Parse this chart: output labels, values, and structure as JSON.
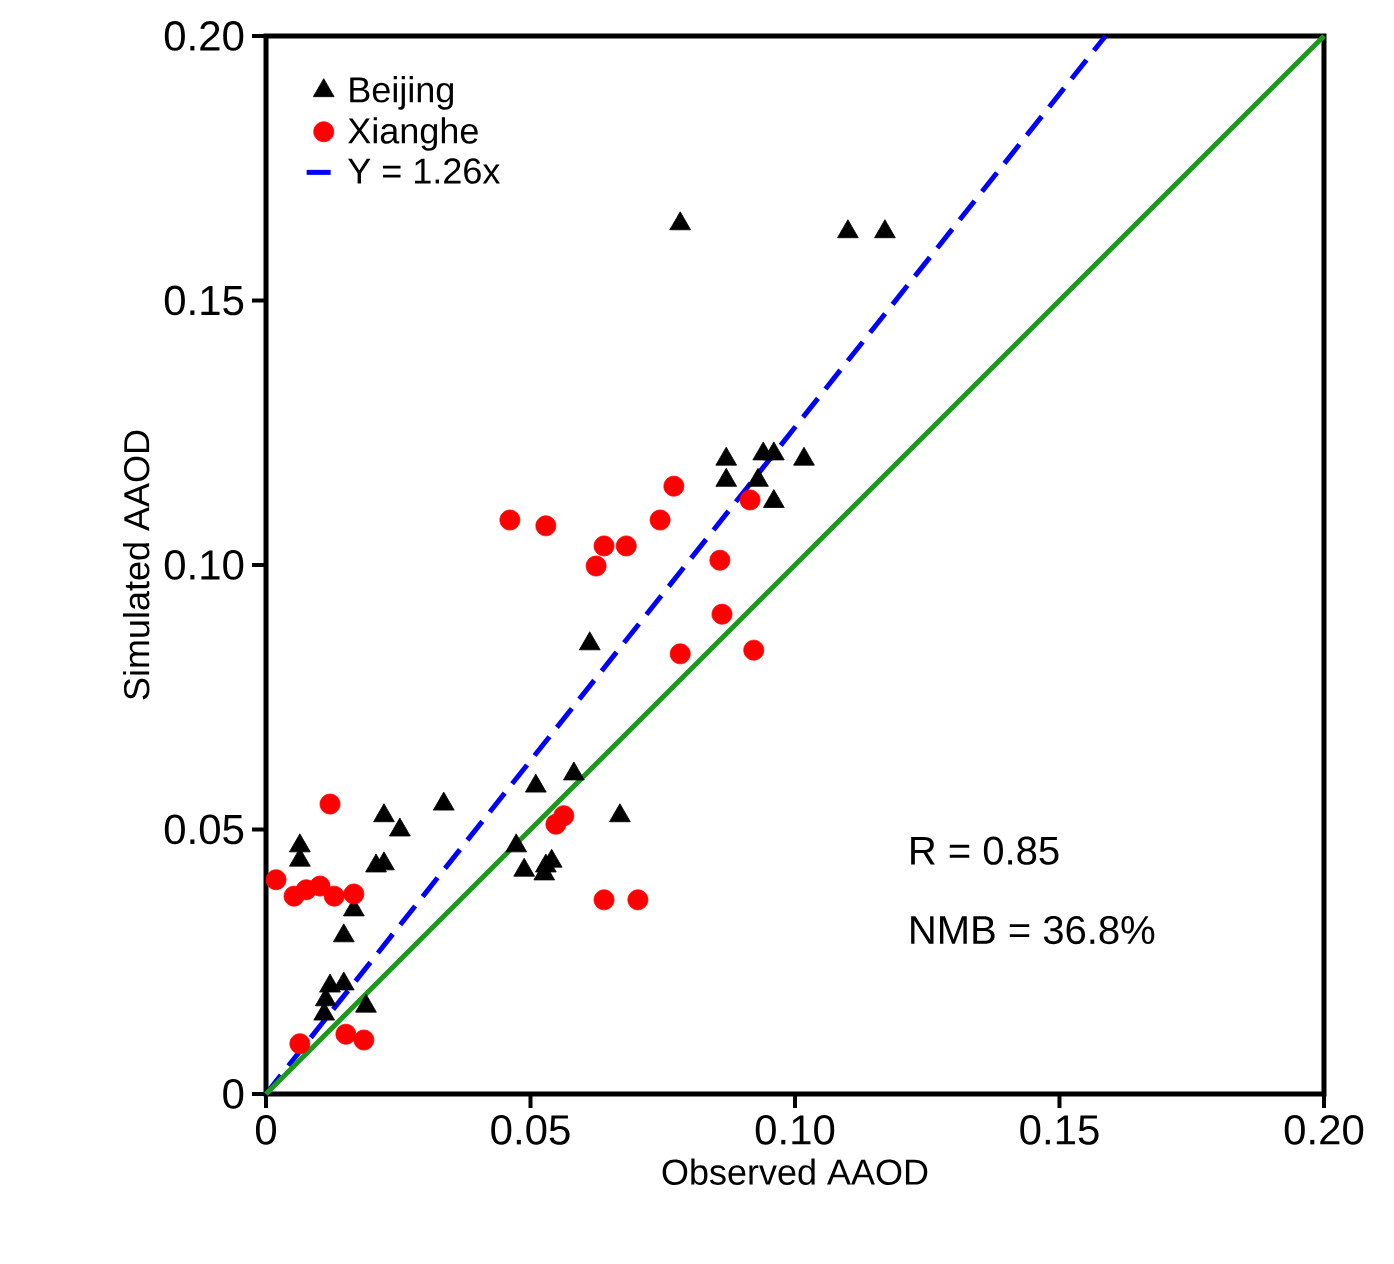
{
  "chart_data": {
    "type": "scatter",
    "xlabel": "Observed AAOD",
    "ylabel": "Simulated AAOD",
    "xlim": [
      0,
      0.2
    ],
    "ylim": [
      0,
      0.2
    ],
    "xticks": [
      0,
      {
        "value": 0.05,
        "label": "0.05"
      },
      {
        "value": 0.1,
        "label": "0.10"
      },
      {
        "value": 0.15,
        "label": "0.15"
      },
      {
        "value": 0.2,
        "label": "0.20"
      }
    ],
    "yticks": [
      0,
      {
        "value": 0.05,
        "label": "0.05"
      },
      {
        "value": 0.1,
        "label": "0.10"
      },
      {
        "value": 0.15,
        "label": "0.15"
      },
      {
        "value": 0.2,
        "label": "0.20"
      }
    ],
    "legend": "top left",
    "grid": false,
    "annotations": [
      "R = 0.85",
      "NMB = 36.8%"
    ],
    "series": [
      {
        "name": "Beijing",
        "marker": "triangle",
        "color": "#000000",
        "x": [
          0.0064,
          0.0064,
          0.0147,
          0.0166,
          0.0208,
          0.0223,
          0.0223,
          0.0253,
          0.0336,
          0.011,
          0.0113,
          0.0121,
          0.0147,
          0.0189,
          0.0473,
          0.0488,
          0.051,
          0.0526,
          0.0529,
          0.054,
          0.0582,
          0.0612,
          0.0669,
          0.0783,
          0.087,
          0.087,
          0.094,
          0.093,
          0.096,
          0.096,
          0.1017,
          0.11,
          0.117
        ],
        "values": [
          0.0469,
          0.0442,
          0.0299,
          0.0348,
          0.0431,
          0.0435,
          0.0526,
          0.0499,
          0.0548,
          0.0151,
          0.0178,
          0.0204,
          0.0208,
          0.0166,
          0.0469,
          0.0423,
          0.0582,
          0.0416,
          0.0431,
          0.044,
          0.0605,
          0.0851,
          0.0526,
          0.1645,
          0.12,
          0.116,
          0.121,
          0.116,
          0.121,
          0.112,
          0.12,
          0.163,
          0.163
        ]
      },
      {
        "name": "Xianghe",
        "marker": "circle",
        "color": "#ff0000",
        "x": [
          0.0019,
          0.0053,
          0.0076,
          0.0102,
          0.0129,
          0.0166,
          0.0121,
          0.0064,
          0.0151,
          0.0185,
          0.0461,
          0.0529,
          0.0624,
          0.0639,
          0.0681,
          0.0745,
          0.0771,
          0.0858,
          0.0862,
          0.0783,
          0.0922,
          0.0915,
          0.0548,
          0.0563,
          0.0639,
          0.0703
        ],
        "values": [
          0.0405,
          0.0374,
          0.0386,
          0.0393,
          0.0374,
          0.0378,
          0.0548,
          0.0095,
          0.0113,
          0.0102,
          0.1085,
          0.1074,
          0.0998,
          0.1036,
          0.1036,
          0.1085,
          0.1149,
          0.1009,
          0.0907,
          0.0832,
          0.0839,
          0.1123,
          0.051,
          0.0526,
          0.0367,
          0.0367
        ]
      },
      {
        "name": "Y = 1.26x",
        "type": "line",
        "line_style": "dashed",
        "marker": "none",
        "color": "#0000ff",
        "x": [
          0,
          0.1587
        ],
        "values": [
          0,
          0.2
        ]
      },
      {
        "type": "line",
        "line_style": "solid",
        "marker": "none",
        "color": "#1a9a1a",
        "x": [
          0,
          0.2
        ],
        "values": [
          0,
          0.2
        ]
      }
    ]
  }
}
